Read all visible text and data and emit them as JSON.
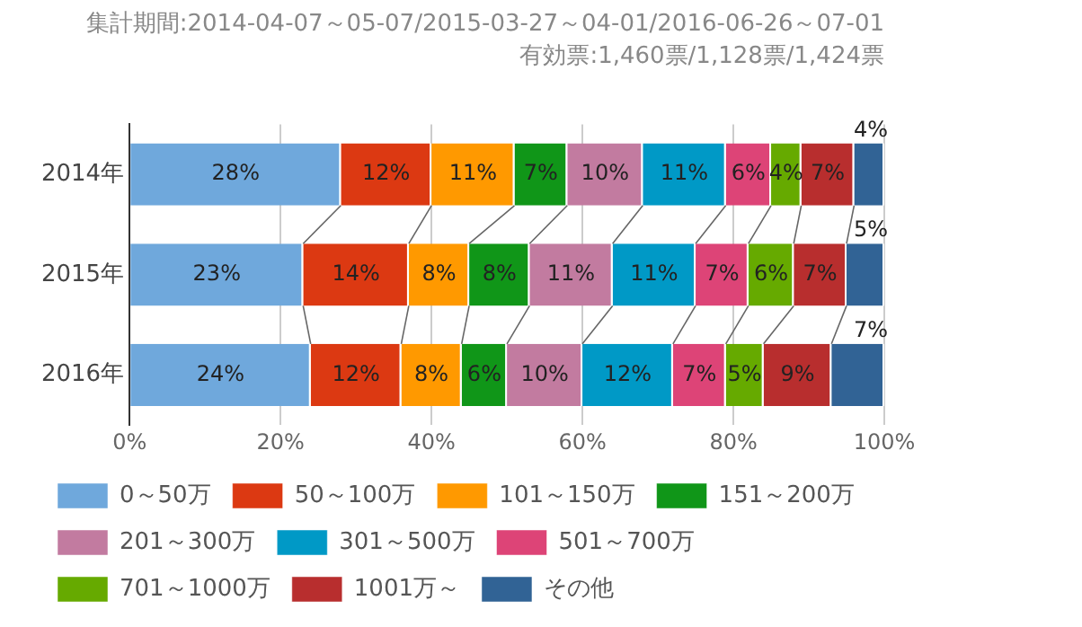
{
  "chart_data": {
    "type": "bar",
    "orientation": "horizontal",
    "stacked": true,
    "title": "集計期間:2014-04-07～05-07/2015-03-27～04-01/2016-06-26～07-01",
    "subtitle": "有効票:1,460票/1,128票/1,424票",
    "categories": [
      "2014年",
      "2015年",
      "2016年"
    ],
    "xlim": [
      0,
      100
    ],
    "xticks": [
      {
        "value": 0,
        "label": "0%"
      },
      {
        "value": 20,
        "label": "20%"
      },
      {
        "value": 40,
        "label": "40%"
      },
      {
        "value": 60,
        "label": "60%"
      },
      {
        "value": 80,
        "label": "80%"
      },
      {
        "value": 100,
        "label": "100%"
      }
    ],
    "grid": "x",
    "legend": "bottom",
    "series": [
      {
        "name": "0～50万",
        "color": "#6fa8dc",
        "values": [
          28,
          23,
          24
        ],
        "value_labels": [
          "28%",
          "23%",
          "24%"
        ]
      },
      {
        "name": "50～100万",
        "color": "#dc3912",
        "values": [
          12,
          14,
          12
        ],
        "value_labels": [
          "12%",
          "14%",
          "12%"
        ]
      },
      {
        "name": "101～150万",
        "color": "#ff9900",
        "values": [
          11,
          8,
          8
        ],
        "value_labels": [
          "11%",
          "8%",
          "8%"
        ]
      },
      {
        "name": "151～200万",
        "color": "#109618",
        "values": [
          7,
          8,
          6
        ],
        "value_labels": [
          "7%",
          "8%",
          "6%"
        ]
      },
      {
        "name": "201～300万",
        "color": "#c27ba0",
        "values": [
          10,
          11,
          10
        ],
        "value_labels": [
          "10%",
          "11%",
          "10%"
        ]
      },
      {
        "name": "301～500万",
        "color": "#0099c6",
        "values": [
          11,
          11,
          12
        ],
        "value_labels": [
          "11%",
          "11%",
          "12%"
        ]
      },
      {
        "name": "501～700万",
        "color": "#dd4477",
        "values": [
          6,
          7,
          7
        ],
        "value_labels": [
          "6%",
          "7%",
          "7%"
        ]
      },
      {
        "name": "701～1000万",
        "color": "#66aa00",
        "values": [
          4,
          6,
          5
        ],
        "value_labels": [
          "4%",
          "6%",
          "5%"
        ]
      },
      {
        "name": "1001万～",
        "color": "#b82e2e",
        "values": [
          7,
          7,
          9
        ],
        "value_labels": [
          "7%",
          "7%",
          "9%"
        ]
      },
      {
        "name": "その他",
        "color": "#316395",
        "values": [
          4,
          5,
          7
        ],
        "value_labels": [
          "4%",
          "5%",
          "7%"
        ]
      }
    ]
  }
}
